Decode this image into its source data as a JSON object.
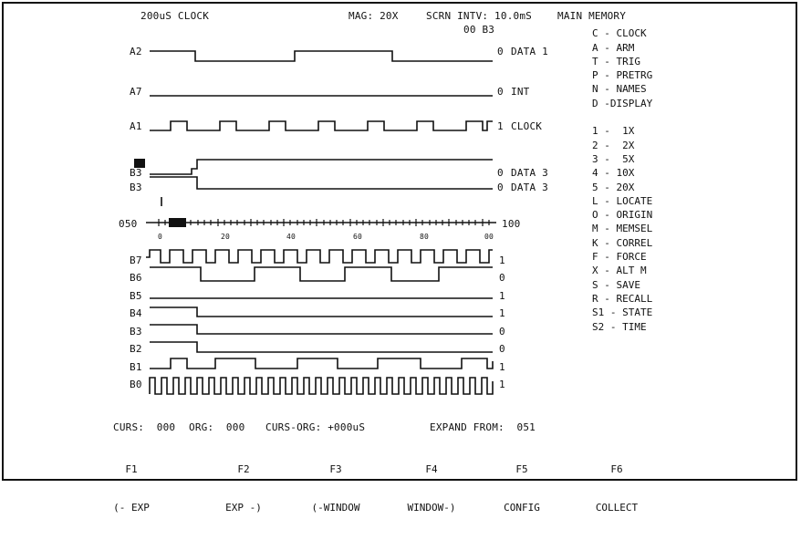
{
  "header": {
    "clock": "200uS CLOCK",
    "mag": "MAG: 20X",
    "scrn_intv": "SCRN INTV: 10.0mS",
    "main_memory": "MAIN MEMORY",
    "col_header": "00 B3"
  },
  "channels_top": [
    {
      "label": "A2",
      "value": "0",
      "name": "DATA 1"
    },
    {
      "label": "A7",
      "value": "0",
      "name": "INT"
    },
    {
      "label": "A1",
      "value": "1",
      "name": "CLOCK"
    }
  ],
  "channels_mid": [
    {
      "label": "B3",
      "value": "0",
      "name": "DATA 3"
    },
    {
      "label": "B3",
      "value": "0",
      "name": "DATA 3"
    }
  ],
  "ruler": {
    "left": "050",
    "right": "100",
    "ticks": [
      "0",
      "20",
      "40",
      "60",
      "80",
      "00"
    ]
  },
  "channels_bottom": [
    {
      "label": "B7",
      "value": "1"
    },
    {
      "label": "B6",
      "value": "0"
    },
    {
      "label": "B5",
      "value": "1"
    },
    {
      "label": "B4",
      "value": "1"
    },
    {
      "label": "B3",
      "value": "0"
    },
    {
      "label": "B2",
      "value": "0"
    },
    {
      "label": "B1",
      "value": "1"
    },
    {
      "label": "B0",
      "value": "1"
    }
  ],
  "menu": [
    "C - CLOCK",
    "A - ARM",
    "T - TRIG",
    "P - PRETRG",
    "N - NAMES",
    "D -DISPLAY",
    "",
    "1 -  1X",
    "2 -  2X",
    "3 -  5X",
    "4 - 10X",
    "5 - 20X",
    "L - LOCATE",
    "O - ORIGIN",
    "M - MEMSEL",
    "K - CORREL",
    "F - FORCE",
    "X - ALT M",
    "S - SAVE",
    "R - RECALL",
    "S1 - STATE",
    "S2 - TIME"
  ],
  "status": {
    "curs": "CURS:  000",
    "org": "ORG:  000",
    "curs_org": "CURS-ORG: +000uS",
    "expand_from": "EXPAND FROM:  051"
  },
  "function_keys": [
    {
      "key": "F1",
      "label": "(- EXP"
    },
    {
      "key": "F2",
      "label": "EXP -)"
    },
    {
      "key": "F3",
      "label": "(-WINDOW"
    },
    {
      "key": "F4",
      "label": "WINDOW-)"
    },
    {
      "key": "F5",
      "label": "CONFIG"
    },
    {
      "key": "F6",
      "label": "COLLECT"
    }
  ],
  "colors": {
    "ink": "#111111",
    "background": "#ffffff"
  }
}
